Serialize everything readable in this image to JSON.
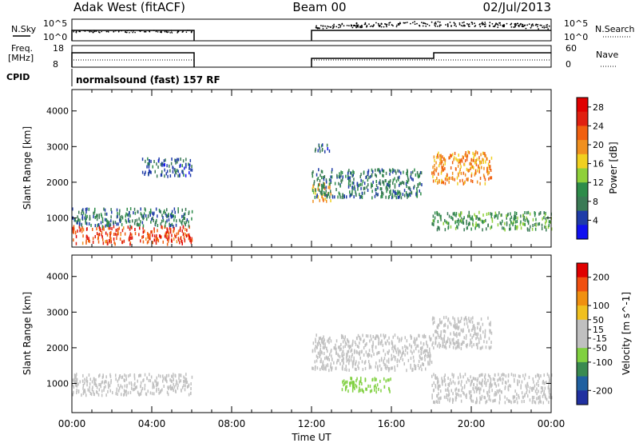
{
  "header": {
    "title_left": "Adak West (fitACF)",
    "title_center": "Beam 00",
    "title_right": "02/Jul/2013"
  },
  "noise_panel": {
    "left_label": "N.Sky",
    "right_label": "N.Search",
    "left_ticks": [
      "10^5",
      "10^0"
    ],
    "right_ticks": [
      "10^5",
      "10^0"
    ]
  },
  "freq_panel": {
    "left_label_1": "Freq.",
    "left_label_2": "[MHz]",
    "right_label": "Nave",
    "left_ticks": [
      "18",
      "8"
    ],
    "right_ticks": [
      "60",
      "0"
    ]
  },
  "cpid": {
    "label": "CPID",
    "value": "normalsound (fast) 157 RF"
  },
  "colors": {
    "power_scale": [
      "#1010f0",
      "#1f3ca8",
      "#3a7a55",
      "#2e8c4a",
      "#8fd03a",
      "#f0d020",
      "#f09020",
      "#f06010",
      "#e02010",
      "#e00000"
    ],
    "velocity_scale": [
      "#2030a0",
      "#2060a0",
      "#3a8a50",
      "#80d040",
      "#c0c0c0",
      "#c0c0c0",
      "#f0c020",
      "#f09010",
      "#f05010",
      "#e00000"
    ]
  },
  "chart_data": [
    {
      "type": "heatmap",
      "panel": "power",
      "ylabel": "Slant Range [km]",
      "xlabel": "Time UT",
      "xlim": [
        "00:00",
        "24:00"
      ],
      "ylim": [
        180,
        4600
      ],
      "x_ticks": [
        "00:00",
        "04:00",
        "08:00",
        "12:00",
        "16:00",
        "20:00",
        "00:00"
      ],
      "y_ticks": [
        1000,
        2000,
        3000,
        4000
      ],
      "colorbar": {
        "label": "Power [dB]",
        "ticks": [
          4,
          8,
          12,
          16,
          20,
          24,
          28
        ],
        "range": [
          0,
          30
        ]
      },
      "data_gap_hours": [
        6,
        12
      ],
      "echo_regions": [
        {
          "t": [
            0.0,
            6.0
          ],
          "range_km": [
            300,
            800
          ],
          "level": 24
        },
        {
          "t": [
            0.0,
            6.0
          ],
          "range_km": [
            800,
            1300
          ],
          "level": 8
        },
        {
          "t": [
            3.5,
            6.0
          ],
          "range_km": [
            2200,
            2700
          ],
          "level": 6
        },
        {
          "t": [
            12.0,
            13.0
          ],
          "range_km": [
            1500,
            2000
          ],
          "level": 18
        },
        {
          "t": [
            12.0,
            17.5
          ],
          "range_km": [
            1600,
            2400
          ],
          "level": 8
        },
        {
          "t": [
            12.0,
            13.0
          ],
          "range_km": [
            2900,
            3100
          ],
          "level": 6
        },
        {
          "t": [
            18.0,
            21.0
          ],
          "range_km": [
            2000,
            2900
          ],
          "level": 20
        },
        {
          "t": [
            18.0,
            24.0
          ],
          "range_km": [
            700,
            1200
          ],
          "level": 10
        }
      ]
    },
    {
      "type": "heatmap",
      "panel": "velocity",
      "ylabel": "Slant Range [km]",
      "xlabel": "Time UT",
      "xlim": [
        "00:00",
        "24:00"
      ],
      "ylim": [
        180,
        4600
      ],
      "x_ticks": [
        "00:00",
        "04:00",
        "08:00",
        "12:00",
        "16:00",
        "20:00",
        "00:00"
      ],
      "y_ticks": [
        1000,
        2000,
        3000,
        4000
      ],
      "colorbar": {
        "label": "Velocity [m s^-1]",
        "ticks": [
          200,
          100,
          50,
          15,
          -15,
          -50,
          -100,
          -200
        ],
        "range": [
          -250,
          250
        ]
      },
      "data_gap_hours": [
        6,
        12
      ],
      "echo_regions": [
        {
          "t": [
            0.0,
            6.0
          ],
          "range_km": [
            700,
            1300
          ],
          "level": 0
        },
        {
          "t": [
            12.0,
            18.0
          ],
          "range_km": [
            1400,
            2400
          ],
          "level": 30
        },
        {
          "t": [
            13.5,
            16.0
          ],
          "range_km": [
            800,
            1200
          ],
          "level": -60
        },
        {
          "t": [
            18.0,
            21.0
          ],
          "range_km": [
            2000,
            2900
          ],
          "level": 20
        },
        {
          "t": [
            18.0,
            24.0
          ],
          "range_km": [
            500,
            1300
          ],
          "level": 0
        }
      ]
    }
  ]
}
